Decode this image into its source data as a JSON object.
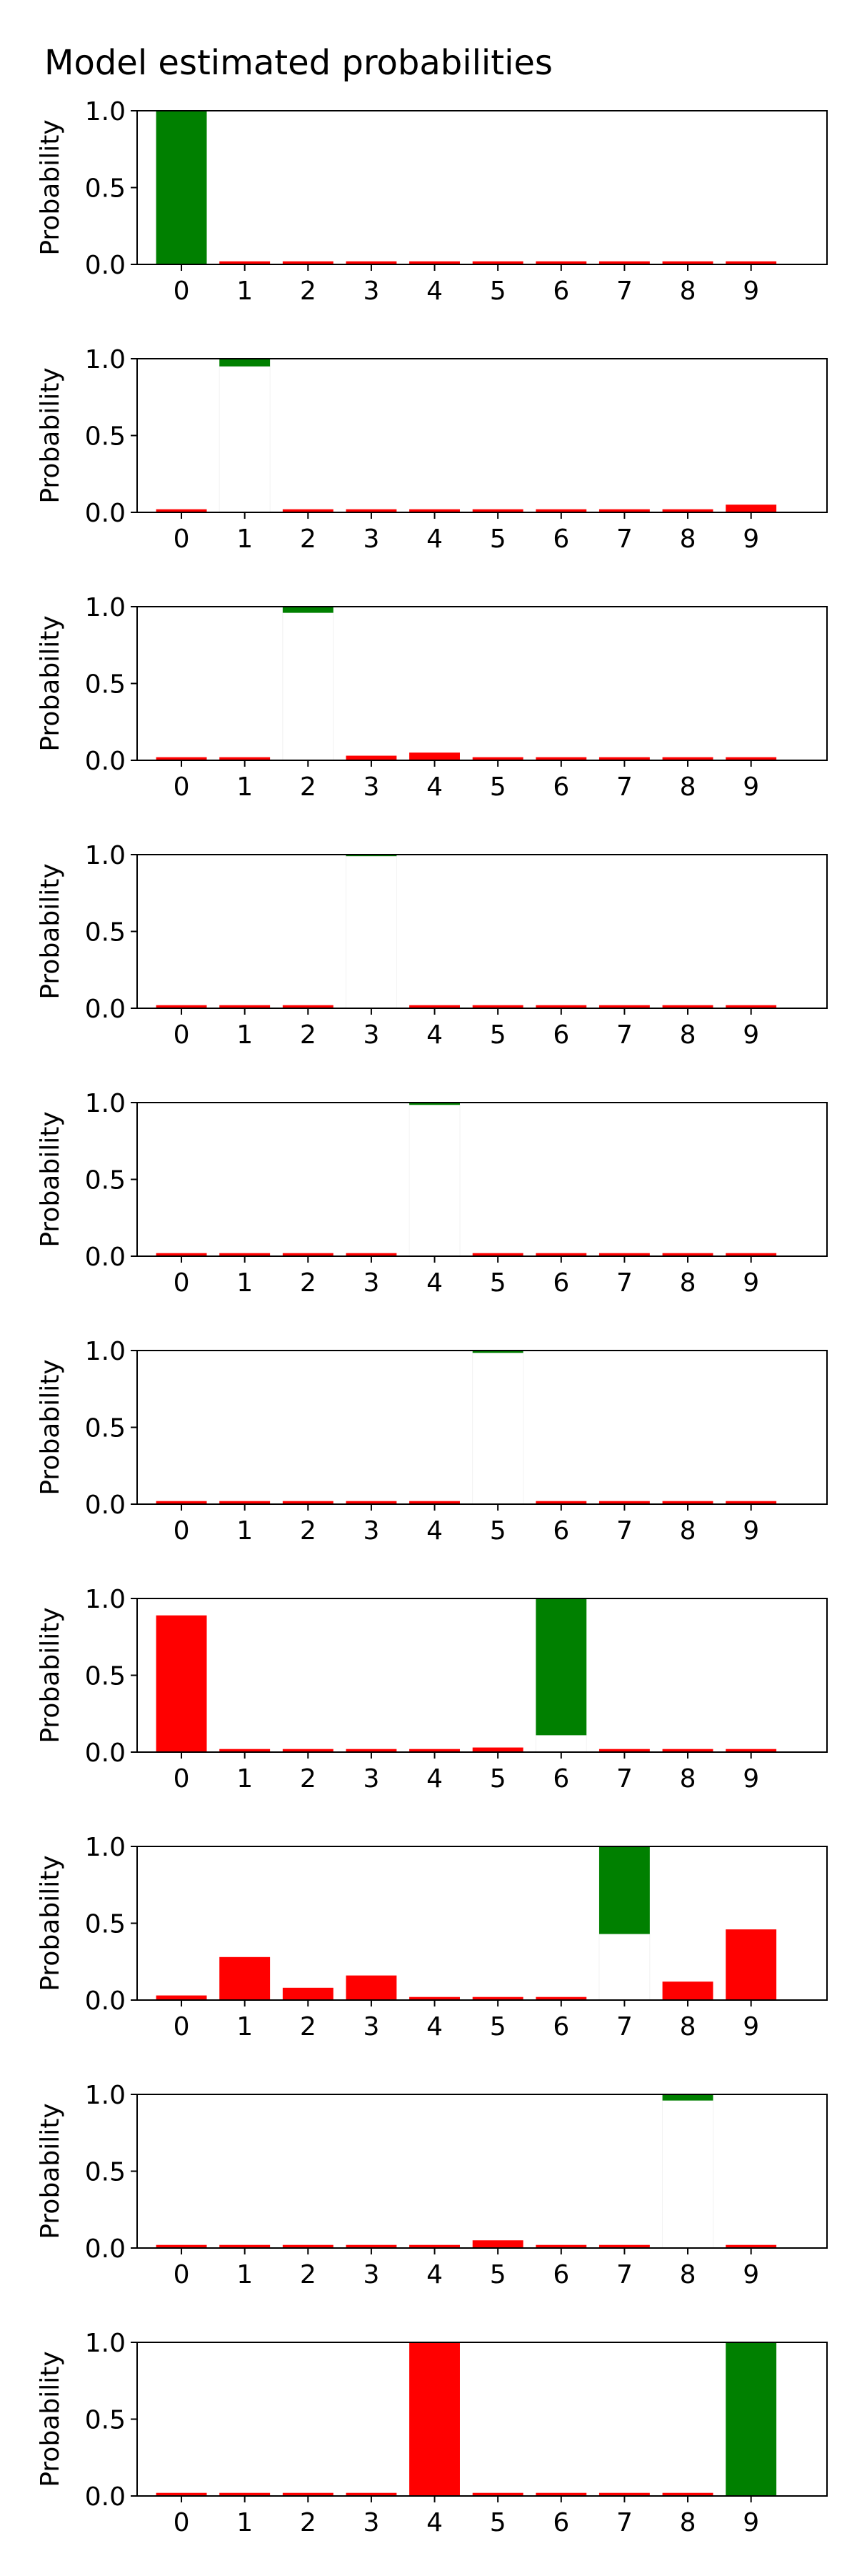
{
  "title": "Model estimated probabilities",
  "colors": {
    "positive": "#008000",
    "negative": "#ff0000"
  },
  "chart_data": [
    {
      "type": "bar",
      "categories": [
        "0",
        "1",
        "2",
        "3",
        "4",
        "5",
        "6",
        "7",
        "8",
        "9"
      ],
      "top": [
        1.0,
        0.02,
        0.02,
        0.02,
        0.02,
        0.02,
        0.02,
        0.02,
        0.02,
        0.02
      ],
      "bottom": [
        0.0,
        0,
        0,
        0,
        0,
        0,
        0,
        0,
        0,
        0
      ],
      "colors": [
        "green",
        "red",
        "red",
        "red",
        "red",
        "red",
        "red",
        "red",
        "red",
        "red"
      ],
      "ylabel": "Probability",
      "ylim": [
        0,
        1
      ],
      "yticks": [
        "0.0",
        "0.5",
        "1.0"
      ]
    },
    {
      "type": "bar",
      "categories": [
        "0",
        "1",
        "2",
        "3",
        "4",
        "5",
        "6",
        "7",
        "8",
        "9"
      ],
      "top": [
        0.02,
        1.0,
        0.02,
        0.02,
        0.02,
        0.02,
        0.02,
        0.02,
        0.02,
        0.05
      ],
      "bottom": [
        0,
        0.95,
        0,
        0,
        0,
        0,
        0,
        0,
        0,
        0
      ],
      "colors": [
        "red",
        "green",
        "red",
        "red",
        "red",
        "red",
        "red",
        "red",
        "red",
        "red"
      ],
      "ylabel": "Probability",
      "ylim": [
        0,
        1
      ],
      "yticks": [
        "0.0",
        "0.5",
        "1.0"
      ]
    },
    {
      "type": "bar",
      "categories": [
        "0",
        "1",
        "2",
        "3",
        "4",
        "5",
        "6",
        "7",
        "8",
        "9"
      ],
      "top": [
        0.02,
        0.02,
        1.0,
        0.03,
        0.05,
        0.02,
        0.02,
        0.02,
        0.02,
        0.02
      ],
      "bottom": [
        0,
        0,
        0.96,
        0,
        0,
        0,
        0,
        0,
        0,
        0
      ],
      "colors": [
        "red",
        "red",
        "green",
        "red",
        "red",
        "red",
        "red",
        "red",
        "red",
        "red"
      ],
      "ylabel": "Probability",
      "ylim": [
        0,
        1
      ],
      "yticks": [
        "0.0",
        "0.5",
        "1.0"
      ]
    },
    {
      "type": "bar",
      "categories": [
        "0",
        "1",
        "2",
        "3",
        "4",
        "5",
        "6",
        "7",
        "8",
        "9"
      ],
      "top": [
        0.02,
        0.02,
        0.02,
        1.0,
        0.02,
        0.02,
        0.02,
        0.02,
        0.02,
        0.02
      ],
      "bottom": [
        0,
        0,
        0,
        0.99,
        0,
        0,
        0,
        0,
        0,
        0
      ],
      "colors": [
        "red",
        "red",
        "red",
        "green",
        "red",
        "red",
        "red",
        "red",
        "red",
        "red"
      ],
      "ylabel": "Probability",
      "ylim": [
        0,
        1
      ],
      "yticks": [
        "0.0",
        "0.5",
        "1.0"
      ]
    },
    {
      "type": "bar",
      "categories": [
        "0",
        "1",
        "2",
        "3",
        "4",
        "5",
        "6",
        "7",
        "8",
        "9"
      ],
      "top": [
        0.02,
        0.02,
        0.02,
        0.02,
        1.0,
        0.02,
        0.02,
        0.02,
        0.02,
        0.02
      ],
      "bottom": [
        0,
        0,
        0,
        0,
        0.985,
        0,
        0,
        0,
        0,
        0
      ],
      "colors": [
        "red",
        "red",
        "red",
        "red",
        "green",
        "red",
        "red",
        "red",
        "red",
        "red"
      ],
      "ylabel": "Probability",
      "ylim": [
        0,
        1
      ],
      "yticks": [
        "0.0",
        "0.5",
        "1.0"
      ]
    },
    {
      "type": "bar",
      "categories": [
        "0",
        "1",
        "2",
        "3",
        "4",
        "5",
        "6",
        "7",
        "8",
        "9"
      ],
      "top": [
        0.02,
        0.02,
        0.02,
        0.02,
        0.02,
        1.0,
        0.02,
        0.02,
        0.02,
        0.02
      ],
      "bottom": [
        0,
        0,
        0,
        0,
        0,
        0.985,
        0,
        0,
        0,
        0
      ],
      "colors": [
        "red",
        "red",
        "red",
        "red",
        "red",
        "green",
        "red",
        "red",
        "red",
        "red"
      ],
      "ylabel": "Probability",
      "ylim": [
        0,
        1
      ],
      "yticks": [
        "0.0",
        "0.5",
        "1.0"
      ]
    },
    {
      "type": "bar",
      "categories": [
        "0",
        "1",
        "2",
        "3",
        "4",
        "5",
        "6",
        "7",
        "8",
        "9"
      ],
      "top": [
        0.89,
        0.02,
        0.02,
        0.02,
        0.02,
        0.03,
        1.0,
        0.02,
        0.02,
        0.02
      ],
      "bottom": [
        0,
        0,
        0,
        0,
        0,
        0,
        0.11,
        0,
        0,
        0
      ],
      "colors": [
        "red",
        "red",
        "red",
        "red",
        "red",
        "red",
        "green",
        "red",
        "red",
        "red"
      ],
      "ylabel": "Probability",
      "ylim": [
        0,
        1
      ],
      "yticks": [
        "0.0",
        "0.5",
        "1.0"
      ]
    },
    {
      "type": "bar",
      "categories": [
        "0",
        "1",
        "2",
        "3",
        "4",
        "5",
        "6",
        "7",
        "8",
        "9"
      ],
      "top": [
        0.03,
        0.28,
        0.08,
        0.16,
        0.02,
        0.02,
        0.02,
        1.0,
        0.12,
        0.46
      ],
      "bottom": [
        0,
        0,
        0,
        0,
        0,
        0,
        0,
        0.43,
        0,
        0
      ],
      "colors": [
        "red",
        "red",
        "red",
        "red",
        "red",
        "red",
        "red",
        "green",
        "red",
        "red"
      ],
      "ylabel": "Probability",
      "ylim": [
        0,
        1
      ],
      "yticks": [
        "0.0",
        "0.5",
        "1.0"
      ]
    },
    {
      "type": "bar",
      "categories": [
        "0",
        "1",
        "2",
        "3",
        "4",
        "5",
        "6",
        "7",
        "8",
        "9"
      ],
      "top": [
        0.02,
        0.02,
        0.02,
        0.02,
        0.02,
        0.05,
        0.02,
        0.02,
        1.0,
        0.02
      ],
      "bottom": [
        0,
        0,
        0,
        0,
        0,
        0,
        0,
        0,
        0.96,
        0
      ],
      "colors": [
        "red",
        "red",
        "red",
        "red",
        "red",
        "red",
        "red",
        "red",
        "green",
        "red"
      ],
      "ylabel": "Probability",
      "ylim": [
        0,
        1
      ],
      "yticks": [
        "0.0",
        "0.5",
        "1.0"
      ]
    },
    {
      "type": "bar",
      "categories": [
        "0",
        "1",
        "2",
        "3",
        "4",
        "5",
        "6",
        "7",
        "8",
        "9"
      ],
      "top": [
        0.02,
        0.02,
        0.02,
        0.02,
        1.0,
        0.02,
        0.02,
        0.02,
        0.02,
        1.0
      ],
      "bottom": [
        0,
        0,
        0,
        0,
        0,
        0,
        0,
        0,
        0,
        0
      ],
      "colors": [
        "red",
        "red",
        "red",
        "red",
        "red",
        "red",
        "red",
        "red",
        "red",
        "green"
      ],
      "ylabel": "Probability",
      "ylim": [
        0,
        1
      ],
      "yticks": [
        "0.0",
        "0.5",
        "1.0"
      ]
    }
  ]
}
